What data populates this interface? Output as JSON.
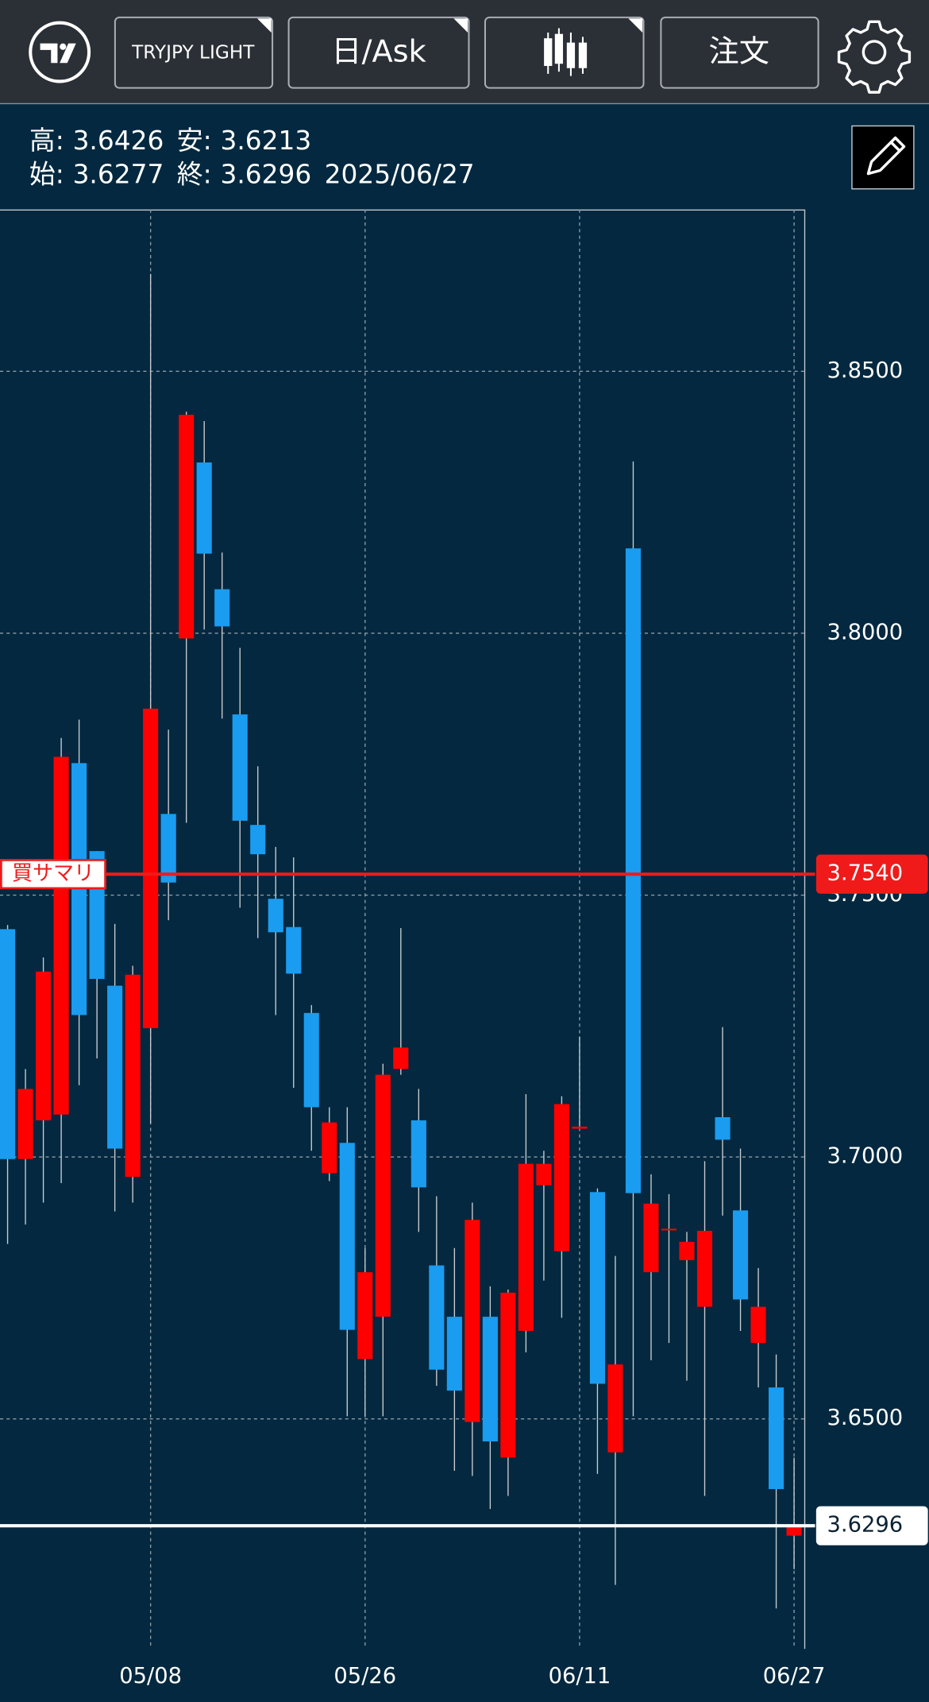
{
  "toolbar": {
    "symbol": "TRYJPY LIGHT",
    "period": "日/Ask",
    "order": "注文"
  },
  "chart_data": {
    "type": "candlestick",
    "info": {
      "high_label": "高:",
      "low_label": "安:",
      "open_label": "始:",
      "close_label": "終:",
      "date": "2025/06/27"
    },
    "categories": [
      null,
      null,
      null,
      null,
      null,
      null,
      null,
      null,
      "05/08",
      null,
      null,
      null,
      null,
      null,
      null,
      null,
      null,
      null,
      null,
      null,
      "05/26",
      null,
      null,
      null,
      null,
      null,
      null,
      null,
      null,
      null,
      null,
      null,
      "06/11",
      null,
      null,
      null,
      null,
      null,
      null,
      null,
      null,
      null,
      null,
      null,
      "06/27"
    ],
    "open": [
      3.7435,
      3.6996,
      3.707,
      3.7081,
      3.7752,
      3.7584,
      3.7327,
      3.6962,
      3.7246,
      3.7655,
      3.799,
      3.8326,
      3.8084,
      3.7845,
      3.7634,
      3.7493,
      3.7439,
      3.7275,
      3.6969,
      3.7027,
      3.6614,
      3.6695,
      3.7168,
      3.707,
      3.6793,
      3.6695,
      3.6494,
      3.6695,
      3.6426,
      3.6668,
      3.6946,
      3.682,
      3.7054,
      3.6933,
      3.6436,
      3.8162,
      3.678,
      3.6861,
      3.6803,
      3.6714,
      3.7076,
      3.6898,
      3.6645,
      3.656,
      3.6277
    ],
    "high": [
      3.7443,
      3.7168,
      3.7381,
      3.78,
      3.7835,
      3.7584,
      3.7445,
      3.7365,
      3.8686,
      3.7816,
      3.8423,
      3.8405,
      3.8154,
      3.7972,
      3.7746,
      3.7592,
      3.7572,
      3.729,
      3.7095,
      3.7095,
      3.6826,
      3.7178,
      3.7437,
      3.713,
      3.6925,
      3.6826,
      3.6913,
      3.6753,
      3.6747,
      3.712,
      3.7012,
      3.7116,
      3.723,
      3.694,
      3.6811,
      3.8328,
      3.6967,
      3.6929,
      3.6857,
      3.6992,
      3.7248,
      3.7016,
      3.6788,
      3.6623,
      3.6426
    ],
    "low": [
      3.6834,
      3.6871,
      3.6913,
      3.695,
      3.7137,
      3.7188,
      3.6896,
      3.6913,
      3.7064,
      3.7452,
      3.7638,
      3.8007,
      3.7837,
      3.7476,
      3.7418,
      3.7271,
      3.7132,
      3.7012,
      3.6954,
      3.6505,
      3.6505,
      3.6505,
      3.7157,
      3.6857,
      3.6563,
      3.6401,
      3.6391,
      3.6328,
      3.6353,
      3.6627,
      3.6764,
      3.6693,
      3.7054,
      3.6395,
      3.6183,
      3.6505,
      3.6612,
      3.6645,
      3.6573,
      3.6353,
      3.6888,
      3.6668,
      3.656,
      3.6138,
      3.6213
    ],
    "close": [
      3.6996,
      3.713,
      3.7354,
      3.7764,
      3.7271,
      3.734,
      3.7016,
      3.7348,
      3.7856,
      3.7524,
      3.8417,
      3.8152,
      3.8013,
      3.7642,
      3.7578,
      3.7429,
      3.735,
      3.7095,
      3.7066,
      3.667,
      3.678,
      3.7157,
      3.7209,
      3.6942,
      3.6594,
      3.6554,
      3.688,
      3.6457,
      3.6741,
      3.6987,
      3.6987,
      3.7101,
      3.7058,
      3.6567,
      3.6604,
      3.6931,
      3.6911,
      3.6863,
      3.6838,
      3.6859,
      3.7033,
      3.6728,
      3.6714,
      3.6366,
      3.6296
    ],
    "up_color": "#ff0000",
    "down_color": "#1a9cf0",
    "ylim": [
      3.6061,
      3.8809
    ],
    "yticks": [
      {
        "value": 3.65,
        "label": "3.6500"
      },
      {
        "value": 3.7,
        "label": "3.7000"
      },
      {
        "value": 3.75,
        "label": "3.7500"
      },
      {
        "value": 3.8,
        "label": "3.8000"
      },
      {
        "value": 3.85,
        "label": "3.8500"
      }
    ],
    "grid": true,
    "price_lines": [
      {
        "label": "買サマリ",
        "value": 3.754,
        "value_label": "3.7540",
        "color": "#f01a1a"
      },
      {
        "value": 3.6296,
        "color": "#ffffff"
      }
    ]
  }
}
